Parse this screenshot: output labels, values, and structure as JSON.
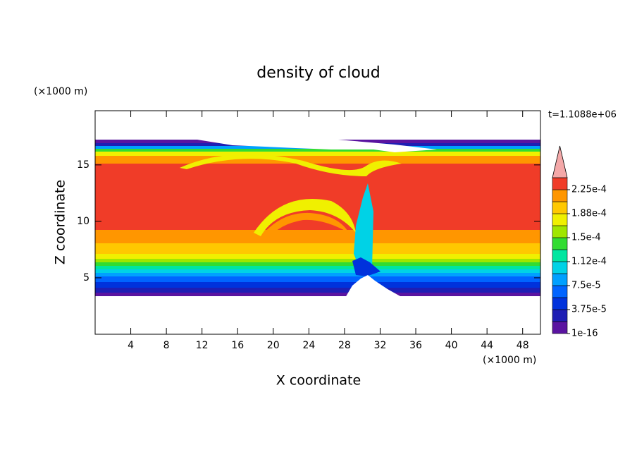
{
  "chart_data": {
    "type": "contour",
    "title": "density of cloud",
    "x_label": "X coordinate",
    "y_label": "Z coordinate",
    "x_unit": "(×1000 m)",
    "y_unit": "(×1000 m)",
    "annotation": "t=1.1088e+06",
    "xlim": [
      0,
      50
    ],
    "xticks": [
      4,
      8,
      12,
      16,
      20,
      24,
      28,
      32,
      36,
      40,
      44,
      48
    ],
    "ylim": [
      0,
      19.8
    ],
    "yticks": [
      5,
      10,
      15
    ],
    "colorbar": {
      "levels": [
        0,
        1.875e-05,
        3.75e-05,
        5.625e-05,
        7.5e-05,
        9.375e-05,
        0.0001125,
        0.00013125,
        0.00015,
        0.00016875,
        0.0001875,
        0.00020625,
        0.000225,
        0.00024375
      ],
      "colors": [
        "#5a14a0",
        "#1e1eb4",
        "#0032dc",
        "#0064ff",
        "#00a0ff",
        "#00d2e6",
        "#00e6a0",
        "#32dc32",
        "#a0e600",
        "#f0f000",
        "#ffc800",
        "#ff9600",
        "#f03c28"
      ],
      "extend_color": "#f4a8a8",
      "ticks": [
        {
          "value": 1e-16,
          "label": "1e-16"
        },
        {
          "value": 3.75e-05,
          "label": "3.75e-5"
        },
        {
          "value": 7.5e-05,
          "label": "7.5e-5"
        },
        {
          "value": 0.0001125,
          "label": "1.12e-4"
        },
        {
          "value": 0.00015,
          "label": "1.5e-4"
        },
        {
          "value": 0.0001875,
          "label": "1.88e-4"
        },
        {
          "value": 0.000225,
          "label": "2.25e-4"
        }
      ]
    }
  }
}
